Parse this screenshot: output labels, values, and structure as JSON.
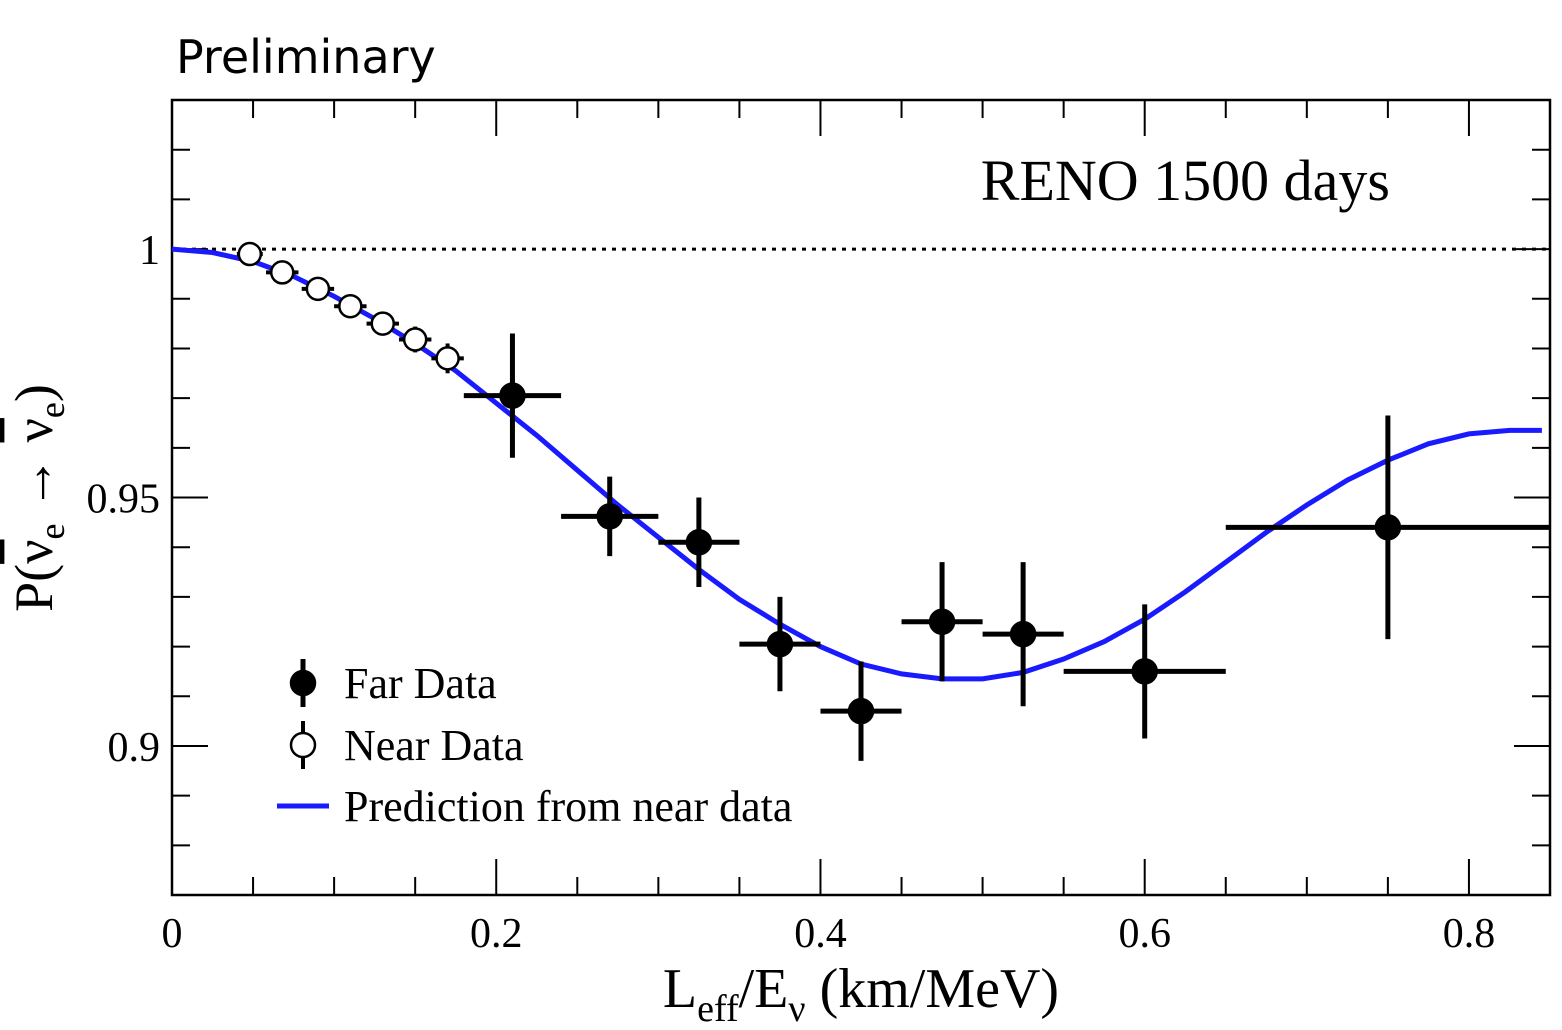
{
  "chart_data": {
    "type": "scatter",
    "corner_label": "Preliminary",
    "title": "RENO 1500 days",
    "xlabel": {
      "base": "L",
      "sub1": "eff",
      "mid": "/E",
      "sub2": "ν",
      "tail": " (km/MeV)"
    },
    "ylabel": {
      "open": "P(",
      "nu1": "ν",
      "sub1": "e",
      "arrow": " → ",
      "nu2": "ν",
      "sub2": "e",
      "close": ")"
    },
    "xlim": [
      0,
      0.85
    ],
    "ylim": [
      0.87,
      1.03
    ],
    "x_ticks": [
      {
        "value": 0,
        "label": "0"
      },
      {
        "value": 0.2,
        "label": "0.2"
      },
      {
        "value": 0.4,
        "label": "0.4"
      },
      {
        "value": 0.6,
        "label": "0.6"
      },
      {
        "value": 0.8,
        "label": "0.8"
      }
    ],
    "y_ticks": [
      {
        "value": 0.9,
        "label": "0.9"
      },
      {
        "value": 0.95,
        "label": "0.95"
      },
      {
        "value": 1.0,
        "label": "1"
      }
    ],
    "reference_line": {
      "y": 1.0,
      "style": "dotted"
    },
    "series": [
      {
        "name": "Far Data",
        "marker": "filled-circle",
        "color": "#000000",
        "points": [
          {
            "x": 0.21,
            "y": 0.9705,
            "x_low": 0.18,
            "x_high": 0.24,
            "y_err": 0.0125
          },
          {
            "x": 0.27,
            "y": 0.9462,
            "x_low": 0.24,
            "x_high": 0.3,
            "y_err": 0.008
          },
          {
            "x": 0.325,
            "y": 0.941,
            "x_low": 0.3,
            "x_high": 0.35,
            "y_err": 0.009
          },
          {
            "x": 0.375,
            "y": 0.9205,
            "x_low": 0.35,
            "x_high": 0.4,
            "y_err": 0.0095
          },
          {
            "x": 0.425,
            "y": 0.907,
            "x_low": 0.4,
            "x_high": 0.45,
            "y_err": 0.01
          },
          {
            "x": 0.475,
            "y": 0.925,
            "x_low": 0.45,
            "x_high": 0.5,
            "y_err": 0.012
          },
          {
            "x": 0.525,
            "y": 0.9225,
            "x_low": 0.5,
            "x_high": 0.55,
            "y_err": 0.0145
          },
          {
            "x": 0.6,
            "y": 0.915,
            "x_low": 0.55,
            "x_high": 0.65,
            "y_err": 0.0135
          },
          {
            "x": 0.75,
            "y": 0.944,
            "x_low": 0.65,
            "x_high": 0.85,
            "y_err": 0.0225
          }
        ]
      },
      {
        "name": "Near Data",
        "marker": "open-circle",
        "color": "#000000",
        "points": [
          {
            "x": 0.048,
            "y": 0.999,
            "x_low": 0.04,
            "x_high": 0.056,
            "y_err": 0.0012
          },
          {
            "x": 0.068,
            "y": 0.9953,
            "x_low": 0.058,
            "x_high": 0.078,
            "y_err": 0.0012
          },
          {
            "x": 0.09,
            "y": 0.992,
            "x_low": 0.08,
            "x_high": 0.1,
            "y_err": 0.0015
          },
          {
            "x": 0.11,
            "y": 0.9885,
            "x_low": 0.1,
            "x_high": 0.12,
            "y_err": 0.0018
          },
          {
            "x": 0.13,
            "y": 0.985,
            "x_low": 0.12,
            "x_high": 0.14,
            "y_err": 0.0022
          },
          {
            "x": 0.15,
            "y": 0.9818,
            "x_low": 0.14,
            "x_high": 0.16,
            "y_err": 0.0026
          },
          {
            "x": 0.17,
            "y": 0.978,
            "x_low": 0.16,
            "x_high": 0.18,
            "y_err": 0.003
          }
        ]
      },
      {
        "name": "Prediction from near data",
        "marker": "line",
        "color": "#1a1aff",
        "x": [
          0,
          0.025,
          0.05,
          0.075,
          0.1,
          0.125,
          0.15,
          0.175,
          0.2,
          0.225,
          0.25,
          0.275,
          0.3,
          0.325,
          0.35,
          0.375,
          0.4,
          0.425,
          0.45,
          0.475,
          0.5,
          0.525,
          0.55,
          0.575,
          0.6,
          0.625,
          0.65,
          0.675,
          0.7,
          0.725,
          0.75,
          0.775,
          0.8,
          0.825,
          0.845
        ],
        "y": [
          1.0,
          0.9993,
          0.9975,
          0.9945,
          0.9905,
          0.986,
          0.981,
          0.9755,
          0.969,
          0.9625,
          0.9555,
          0.9485,
          0.942,
          0.9355,
          0.9295,
          0.9245,
          0.92,
          0.9165,
          0.9145,
          0.9135,
          0.9135,
          0.9148,
          0.9175,
          0.921,
          0.9255,
          0.931,
          0.937,
          0.943,
          0.9485,
          0.9535,
          0.9575,
          0.9608,
          0.9628,
          0.9635,
          0.9635
        ]
      }
    ],
    "legend": {
      "position": "lower-left",
      "entries": [
        {
          "label": "Far Data",
          "marker": "filled-circle"
        },
        {
          "label": "Near Data",
          "marker": "open-circle"
        },
        {
          "label": "Prediction from near data",
          "marker": "line"
        }
      ]
    }
  }
}
